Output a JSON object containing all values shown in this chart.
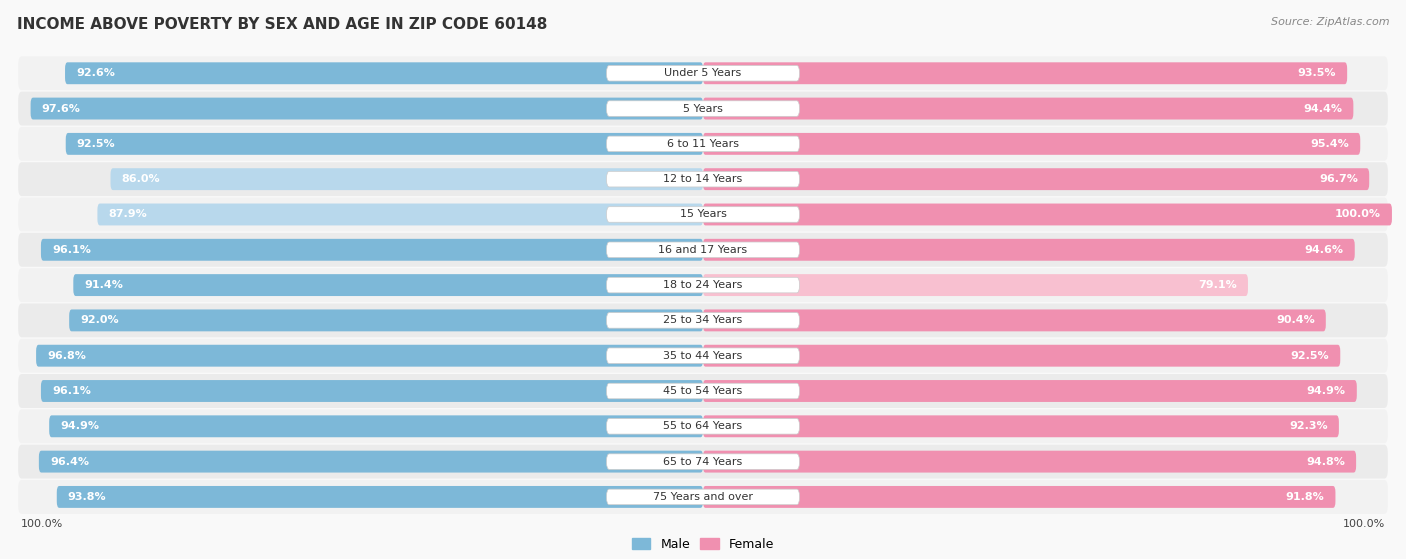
{
  "title": "INCOME ABOVE POVERTY BY SEX AND AGE IN ZIP CODE 60148",
  "source": "Source: ZipAtlas.com",
  "categories": [
    "Under 5 Years",
    "5 Years",
    "6 to 11 Years",
    "12 to 14 Years",
    "15 Years",
    "16 and 17 Years",
    "18 to 24 Years",
    "25 to 34 Years",
    "35 to 44 Years",
    "45 to 54 Years",
    "55 to 64 Years",
    "65 to 74 Years",
    "75 Years and over"
  ],
  "male": [
    92.6,
    97.6,
    92.5,
    86.0,
    87.9,
    96.1,
    91.4,
    92.0,
    96.8,
    96.1,
    94.9,
    96.4,
    93.8
  ],
  "female": [
    93.5,
    94.4,
    95.4,
    96.7,
    100.0,
    94.6,
    79.1,
    90.4,
    92.5,
    94.9,
    92.3,
    94.8,
    91.8
  ],
  "male_color": "#7db8d8",
  "female_color": "#f090b0",
  "male_light_color": "#b8d8ec",
  "female_light_color": "#f8c0d0",
  "row_bg_odd": "#ebebeb",
  "row_bg_even": "#f2f2f2",
  "background_color": "#f9f9f9",
  "title_fontsize": 11,
  "label_fontsize": 8,
  "category_fontsize": 8,
  "source_fontsize": 8,
  "legend_fontsize": 9,
  "axis_label_fontsize": 8
}
